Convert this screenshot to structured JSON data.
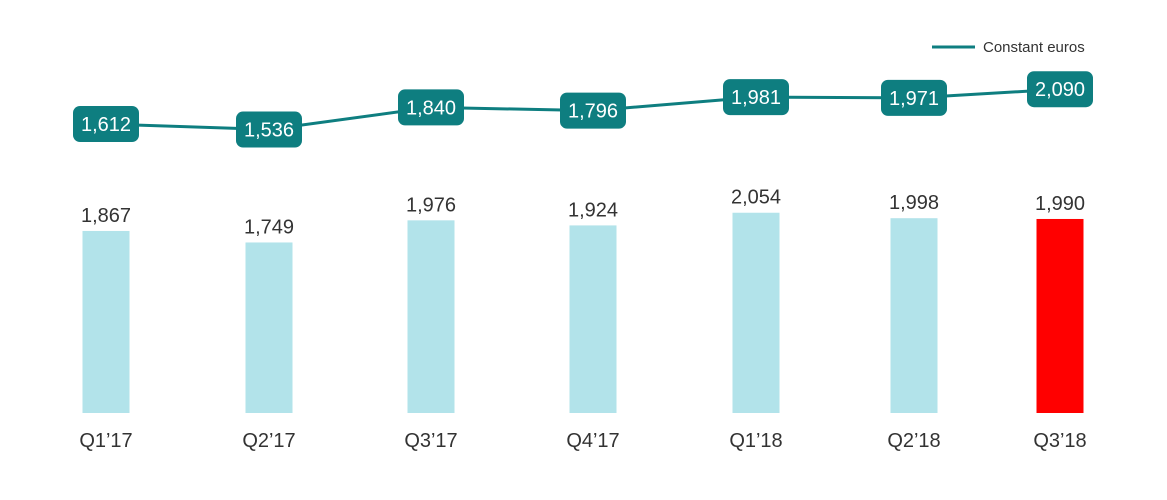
{
  "chart_data": {
    "type": "bar",
    "categories": [
      "Q1’17",
      "Q2’17",
      "Q3’17",
      "Q4’17",
      "Q1’18",
      "Q2’18",
      "Q3’18"
    ],
    "series": [
      {
        "type": "bar",
        "values": [
          1867,
          1749,
          1976,
          1924,
          2054,
          1998,
          1990
        ],
        "labels": [
          "1,867",
          "1,749",
          "1,976",
          "1,924",
          "2,054",
          "1,998",
          "1,990"
        ],
        "color": "#b2e3ea",
        "highlight_color": "#ff0000",
        "highlight_index": 6
      },
      {
        "name": "Constant euros",
        "type": "line",
        "values": [
          1612,
          1536,
          1840,
          1796,
          1981,
          1971,
          2090
        ],
        "labels": [
          "1,612",
          "1,536",
          "1,840",
          "1,796",
          "1,981",
          "1,971",
          "2,090"
        ],
        "color": "#0e7e80"
      }
    ],
    "legend": {
      "position": "top-right",
      "label": "Constant euros"
    },
    "grid": false,
    "xlabel": "",
    "ylabel": ""
  }
}
